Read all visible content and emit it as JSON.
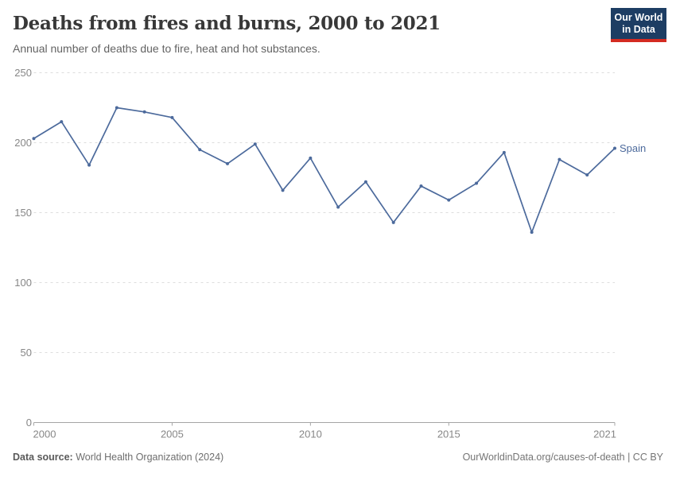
{
  "header": {
    "title": "Deaths from fires and burns, 2000 to 2021",
    "subtitle": "Annual number of deaths due to fire, heat and hot substances.",
    "logo": {
      "line1": "Our World",
      "line2": "in Data",
      "bg_color": "#1d3d63",
      "accent_color": "#d42b21"
    }
  },
  "chart_data": {
    "type": "line",
    "title": "Deaths from fires and burns, 2000 to 2021",
    "subtitle": "Annual number of deaths due to fire, heat and hot substances.",
    "x": [
      2000,
      2001,
      2002,
      2003,
      2004,
      2005,
      2006,
      2007,
      2008,
      2009,
      2010,
      2011,
      2012,
      2013,
      2014,
      2015,
      2016,
      2017,
      2018,
      2019,
      2020,
      2021
    ],
    "series": [
      {
        "name": "Spain",
        "color": "#4c6a9c",
        "values": [
          203,
          215,
          184,
          225,
          222,
          218,
          195,
          185,
          199,
          166,
          189,
          154,
          172,
          143,
          169,
          159,
          171,
          193,
          136,
          188,
          177,
          196
        ]
      }
    ],
    "xlabel": "",
    "ylabel": "",
    "xlim": [
      2000,
      2021
    ],
    "ylim": [
      0,
      250
    ],
    "yticks": [
      0,
      50,
      100,
      150,
      200,
      250
    ],
    "xticks": [
      2000,
      2005,
      2010,
      2015,
      2021
    ],
    "grid": "horizontal-dashed",
    "legend": "inline-end-label",
    "colors": {
      "grid_color": "#dddddd",
      "axis_color": "#a5a5a5",
      "tick_label_color": "#878787"
    }
  },
  "footer": {
    "source_label": "Data source:",
    "source_text": " World Health Organization (2024)",
    "right_text": "OurWorldinData.org/causes-of-death | CC BY"
  }
}
